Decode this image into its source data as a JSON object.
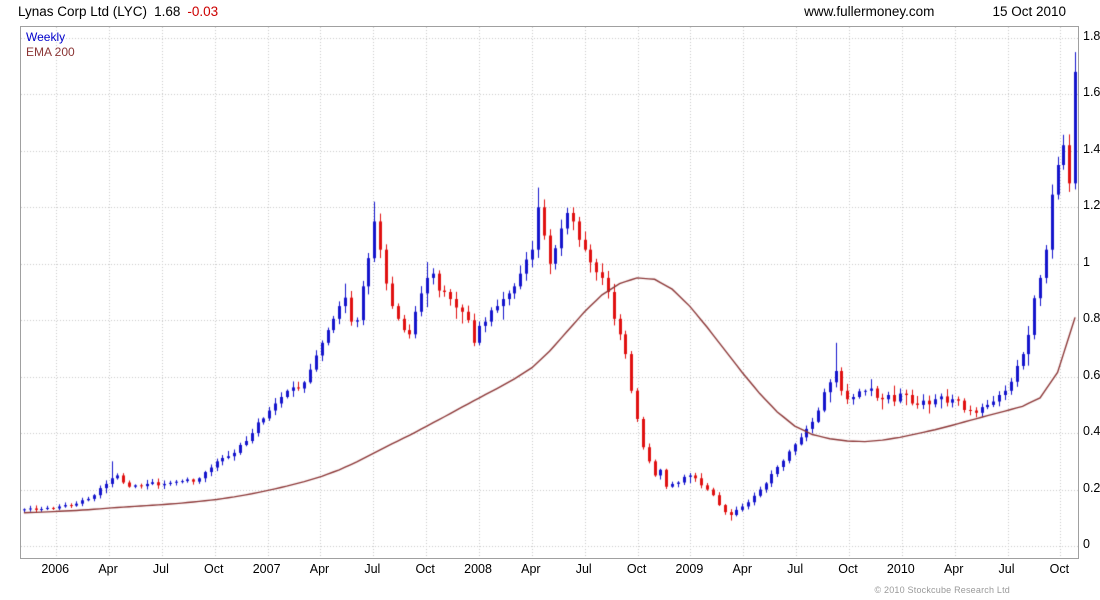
{
  "header": {
    "instrument": "Lynas Corp Ltd (LYC)",
    "price": "1.68",
    "change": "-0.03",
    "website": "www.fullermoney.com",
    "date": "15 Oct 2010"
  },
  "legend": {
    "series1": "Weekly",
    "series2": "EMA 200"
  },
  "footer": {
    "copyright": "© 2010 Stockcube Research Ltd"
  },
  "colors": {
    "up": "#1414cc",
    "down": "#e01010",
    "ema": "#8b3535",
    "grid": "#c8c8c8",
    "border": "#a0a0a0",
    "change_negative": "#cc0000",
    "legend_weekly": "#0000cc",
    "legend_ema": "#8b3535",
    "copyright": "#9a9a9a"
  },
  "chart_data": {
    "type": "candlestick",
    "subtype": "weekly OHLC with 200-period EMA overlay",
    "ylim": [
      0,
      1.8
    ],
    "grid": "dotted",
    "legend_position": "top-left",
    "yticks": [
      {
        "label": "1.8",
        "value": 1.8
      },
      {
        "label": "1.6",
        "value": 1.6
      },
      {
        "label": "1.4",
        "value": 1.4
      },
      {
        "label": "1.2",
        "value": 1.2
      },
      {
        "label": "1",
        "value": 1.0
      },
      {
        "label": "0.8",
        "value": 0.8
      },
      {
        "label": "0.6",
        "value": 0.6
      },
      {
        "label": "0.4",
        "value": 0.4
      },
      {
        "label": "0.2",
        "value": 0.2
      },
      {
        "label": "0",
        "value": 0.0
      }
    ],
    "x_axis": {
      "months_total": 60,
      "labels": [
        {
          "text": "2006",
          "month": 2
        },
        {
          "text": "Apr",
          "month": 5
        },
        {
          "text": "Jul",
          "month": 8
        },
        {
          "text": "Oct",
          "month": 11
        },
        {
          "text": "2007",
          "month": 14
        },
        {
          "text": "Apr",
          "month": 17
        },
        {
          "text": "Jul",
          "month": 20
        },
        {
          "text": "Oct",
          "month": 23
        },
        {
          "text": "2008",
          "month": 26
        },
        {
          "text": "Apr",
          "month": 29
        },
        {
          "text": "Jul",
          "month": 32
        },
        {
          "text": "Oct",
          "month": 35
        },
        {
          "text": "2009",
          "month": 38
        },
        {
          "text": "Apr",
          "month": 41
        },
        {
          "text": "Jul",
          "month": 44
        },
        {
          "text": "Oct",
          "month": 47
        },
        {
          "text": "2010",
          "month": 50
        },
        {
          "text": "Apr",
          "month": 53
        },
        {
          "text": "Jul",
          "month": 56
        },
        {
          "text": "Oct",
          "month": 59
        }
      ]
    },
    "series": [
      {
        "name": "Weekly",
        "type": "candlestick",
        "closes": [
          0.13,
          0.133,
          0.128,
          0.131,
          0.135,
          0.133,
          0.14,
          0.145,
          0.143,
          0.15,
          0.162,
          0.167,
          0.18,
          0.205,
          0.22,
          0.24,
          0.25,
          0.225,
          0.21,
          0.215,
          0.212,
          0.22,
          0.226,
          0.215,
          0.22,
          0.224,
          0.228,
          0.23,
          0.236,
          0.228,
          0.24,
          0.262,
          0.278,
          0.3,
          0.312,
          0.318,
          0.33,
          0.358,
          0.372,
          0.4,
          0.438,
          0.452,
          0.48,
          0.505,
          0.528,
          0.55,
          0.562,
          0.558,
          0.58,
          0.625,
          0.675,
          0.72,
          0.765,
          0.805,
          0.85,
          0.88,
          0.795,
          0.8,
          0.92,
          1.02,
          1.15,
          1.05,
          0.93,
          0.85,
          0.805,
          0.765,
          0.75,
          0.83,
          0.895,
          0.95,
          0.965,
          0.905,
          0.9,
          0.875,
          0.845,
          0.83,
          0.8,
          0.72,
          0.78,
          0.795,
          0.835,
          0.85,
          0.875,
          0.895,
          0.92,
          0.965,
          1.015,
          1.05,
          1.2,
          1.1,
          1.0,
          1.055,
          1.125,
          1.18,
          1.15,
          1.085,
          1.05,
          1.005,
          0.97,
          0.95,
          0.9,
          0.805,
          0.75,
          0.68,
          0.55,
          0.45,
          0.35,
          0.3,
          0.25,
          0.27,
          0.21,
          0.22,
          0.225,
          0.245,
          0.25,
          0.24,
          0.215,
          0.2,
          0.18,
          0.145,
          0.12,
          0.11,
          0.128,
          0.14,
          0.155,
          0.178,
          0.2,
          0.222,
          0.255,
          0.28,
          0.302,
          0.335,
          0.36,
          0.385,
          0.415,
          0.44,
          0.48,
          0.545,
          0.58,
          0.62,
          0.55,
          0.52,
          0.528,
          0.548,
          0.55,
          0.558,
          0.525,
          0.52,
          0.535,
          0.512,
          0.54,
          0.535,
          0.505,
          0.5,
          0.515,
          0.502,
          0.52,
          0.53,
          0.508,
          0.52,
          0.515,
          0.482,
          0.48,
          0.472,
          0.492,
          0.5,
          0.512,
          0.535,
          0.55,
          0.582,
          0.638,
          0.68,
          0.748,
          0.878,
          0.95,
          1.05,
          1.245,
          1.35,
          1.42,
          1.285,
          1.68
        ]
      },
      {
        "name": "EMA 200",
        "type": "line",
        "monthly_values": [
          0.118,
          0.12,
          0.123,
          0.126,
          0.13,
          0.135,
          0.139,
          0.143,
          0.147,
          0.152,
          0.158,
          0.165,
          0.174,
          0.185,
          0.198,
          0.212,
          0.228,
          0.247,
          0.27,
          0.298,
          0.33,
          0.362,
          0.392,
          0.425,
          0.458,
          0.492,
          0.525,
          0.558,
          0.592,
          0.632,
          0.69,
          0.76,
          0.83,
          0.89,
          0.93,
          0.95,
          0.945,
          0.91,
          0.85,
          0.775,
          0.695,
          0.615,
          0.54,
          0.475,
          0.425,
          0.395,
          0.38,
          0.372,
          0.37,
          0.375,
          0.385,
          0.398,
          0.412,
          0.428,
          0.445,
          0.462,
          0.478,
          0.495,
          0.525,
          0.615,
          0.81
        ]
      }
    ],
    "extremes": [
      {
        "i": 15,
        "h": 0.3
      },
      {
        "i": 60,
        "h": 1.22
      },
      {
        "i": 88,
        "h": 1.27
      },
      {
        "i": 121,
        "l": 0.09
      },
      {
        "i": 139,
        "h": 0.72
      },
      {
        "i": 180,
        "h": 1.75
      }
    ]
  }
}
